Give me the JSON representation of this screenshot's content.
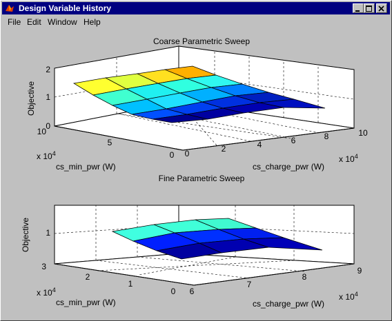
{
  "window": {
    "title": "Design Variable History"
  },
  "menu": {
    "items": [
      "File",
      "Edit",
      "Window",
      "Help"
    ]
  },
  "colors": {
    "titlebar": "#000080",
    "face": "#c0c0c0"
  },
  "icons": [
    "matlab-logo-icon",
    "minimize-icon",
    "maximize-icon",
    "close-icon"
  ],
  "chart_data": [
    {
      "type": "surface",
      "title": "Coarse Parametric Sweep",
      "xlabel": "cs_charge_pwr (W)",
      "ylabel": "cs_min_pwr (W)",
      "zlabel": "Objective",
      "x_exponent": "x 10^4",
      "y_exponent": "x 10^4",
      "x_ticks": [
        "0",
        "2",
        "4",
        "6",
        "8",
        "10"
      ],
      "y_ticks": [
        "0",
        "5",
        "10"
      ],
      "z_ticks": [
        "0",
        "1",
        "2"
      ],
      "xlim": [
        0,
        10
      ],
      "ylim": [
        0,
        10
      ],
      "zlim": [
        0,
        2
      ],
      "grid": true
    },
    {
      "type": "surface",
      "title": "Fine Parametric Sweep",
      "xlabel": "cs_charge_pwr (W)",
      "ylabel": "cs_min_pwr (W)",
      "zlabel": "Objective",
      "x_exponent": "x 10^4",
      "y_exponent": "x 10^4",
      "x_ticks": [
        "6",
        "7",
        "8",
        "9"
      ],
      "y_ticks": [
        "0",
        "1",
        "2",
        "3"
      ],
      "z_ticks": [
        "1"
      ],
      "xlim": [
        6,
        9
      ],
      "ylim": [
        0,
        3
      ],
      "grid": true
    }
  ]
}
